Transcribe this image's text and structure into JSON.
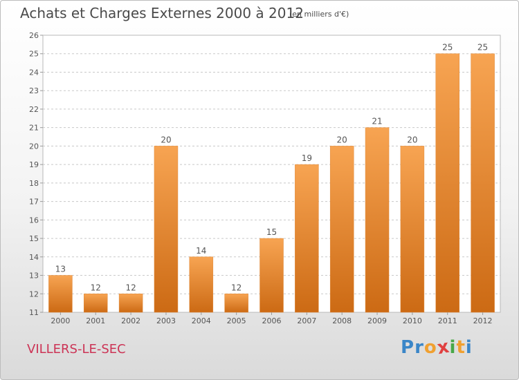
{
  "header": {
    "title": "Achats et Charges Externes 2000 à 2012",
    "subtitle": "(en milliers d'€)"
  },
  "footer": {
    "town": "VILLERS-LE-SEC",
    "brand": "Proxiti",
    "brand_letters": [
      {
        "char": "P",
        "color": "#3a86c8"
      },
      {
        "char": "r",
        "color": "#3a86c8"
      },
      {
        "char": "o",
        "color": "#f0a030"
      },
      {
        "char": "x",
        "color": "#e04040"
      },
      {
        "char": "i",
        "color": "#48a848"
      },
      {
        "char": "t",
        "color": "#f0a030"
      },
      {
        "char": "i",
        "color": "#3a86c8"
      }
    ]
  },
  "chart_data": {
    "type": "bar",
    "categories": [
      "2000",
      "2001",
      "2002",
      "2003",
      "2004",
      "2005",
      "2006",
      "2007",
      "2008",
      "2009",
      "2010",
      "2011",
      "2012"
    ],
    "values": [
      13,
      12,
      12,
      20,
      14,
      12,
      15,
      19,
      20,
      21,
      20,
      25,
      25
    ],
    "labels": [
      "13",
      "12",
      "12",
      "20",
      "14",
      "12",
      "15",
      "19",
      "20",
      "21",
      "20",
      "25",
      "25"
    ],
    "ylim": [
      11,
      26
    ],
    "yticks": [
      "11",
      "12",
      "13",
      "14",
      "15",
      "16",
      "17",
      "18",
      "19",
      "20",
      "21",
      "22",
      "23",
      "24",
      "25",
      "26"
    ],
    "grid": true,
    "bar_color_top": "#f7a452",
    "bar_color_bottom": "#cc6a14"
  }
}
